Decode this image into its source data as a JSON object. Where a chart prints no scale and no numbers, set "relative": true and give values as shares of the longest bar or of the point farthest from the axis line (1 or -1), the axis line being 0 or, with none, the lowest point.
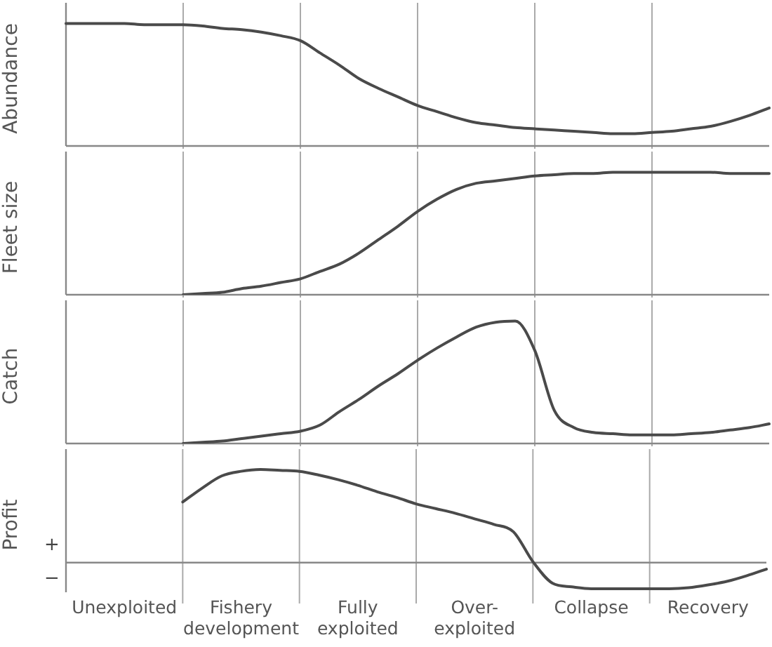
{
  "chart_data": [
    {
      "type": "line",
      "ylabel": "Abundance",
      "relative": true,
      "tick_labels": false,
      "line_style": "solid",
      "marker": "none",
      "legend": false,
      "grid": "x",
      "categories": [
        null,
        null,
        null,
        null,
        null,
        null,
        null,
        null,
        null,
        null,
        null,
        null,
        null,
        null,
        null,
        null,
        null,
        null,
        null,
        null,
        null,
        null,
        null,
        null,
        null,
        null,
        null,
        null,
        null,
        null,
        null,
        null,
        null,
        null,
        null,
        null,
        null
      ],
      "series": [
        {
          "color": "#4a4a4a",
          "values": [
            1.0,
            1.0,
            1.0,
            1.0,
            0.99,
            0.99,
            0.99,
            0.98,
            0.96,
            0.95,
            0.93,
            0.9,
            0.86,
            0.76,
            0.66,
            0.55,
            0.47,
            0.4,
            0.33,
            0.28,
            0.23,
            0.19,
            0.17,
            0.15,
            0.14,
            0.13,
            0.12,
            0.11,
            0.1,
            0.1,
            0.11,
            0.12,
            0.14,
            0.16,
            0.2,
            0.25,
            0.31
          ]
        }
      ]
    },
    {
      "type": "line",
      "ylabel": "Fleet size",
      "relative": true,
      "tick_labels": false,
      "line_style": "solid",
      "marker": "none",
      "legend": false,
      "grid": "x",
      "categories": [
        null,
        null,
        null,
        null,
        null,
        null,
        null,
        null,
        null,
        null,
        null,
        null,
        null,
        null,
        null,
        null,
        null,
        null,
        null,
        null,
        null,
        null,
        null,
        null,
        null,
        null,
        null,
        null,
        null,
        null,
        null,
        null,
        null,
        null,
        null,
        null,
        null
      ],
      "series": [
        {
          "color": "#4a4a4a",
          "values": [
            null,
            null,
            null,
            null,
            null,
            null,
            0,
            0.01,
            0.02,
            0.05,
            0.07,
            0.1,
            0.13,
            0.19,
            0.25,
            0.34,
            0.45,
            0.56,
            0.68,
            0.78,
            0.86,
            0.91,
            0.93,
            0.95,
            0.97,
            0.98,
            0.99,
            0.99,
            1.0,
            1.0,
            1.0,
            1.0,
            1.0,
            1.0,
            0.99,
            0.99,
            0.99
          ]
        }
      ]
    },
    {
      "type": "line",
      "ylabel": "Catch",
      "relative": true,
      "tick_labels": false,
      "line_style": "solid",
      "marker": "none",
      "legend": false,
      "grid": "x",
      "categories": [
        null,
        null,
        null,
        null,
        null,
        null,
        null,
        null,
        null,
        null,
        null,
        null,
        null,
        null,
        null,
        null,
        null,
        null,
        null,
        null,
        null,
        null,
        null,
        null,
        null,
        null,
        null,
        null,
        null,
        null,
        null,
        null,
        null,
        null,
        null,
        null,
        null
      ],
      "series": [
        {
          "color": "#4a4a4a",
          "values": [
            null,
            null,
            null,
            null,
            null,
            null,
            0,
            0.01,
            0.02,
            0.04,
            0.06,
            0.08,
            0.1,
            0.15,
            0.26,
            0.36,
            0.47,
            0.57,
            0.68,
            0.78,
            0.87,
            0.95,
            0.99,
            1.0,
            0.76,
            0.27,
            0.13,
            0.09,
            0.08,
            0.07,
            0.07,
            0.07,
            0.08,
            0.09,
            0.11,
            0.13,
            0.16
          ]
        }
      ]
    },
    {
      "type": "line",
      "ylabel": "Profit",
      "relative": true,
      "line_style": "solid",
      "marker": "none",
      "legend": false,
      "grid": "x",
      "categories": [
        null,
        null,
        null,
        "Unexploited",
        null,
        null,
        null,
        null,
        null,
        "Fishery\ndevelopment",
        null,
        null,
        null,
        null,
        null,
        "Fully\nexploited",
        null,
        null,
        null,
        null,
        null,
        "Over-\nexploited",
        null,
        null,
        null,
        null,
        null,
        "Collapse",
        null,
        null,
        null,
        null,
        null,
        "Recovery",
        null,
        null,
        null
      ],
      "annotations": [
        "+",
        "−"
      ],
      "series": [
        {
          "color": "#4a4a4a",
          "values": [
            null,
            null,
            null,
            null,
            null,
            null,
            0.65,
            0.8,
            0.93,
            0.98,
            1.0,
            0.99,
            0.98,
            0.94,
            0.89,
            0.83,
            0.76,
            0.7,
            0.63,
            0.58,
            0.53,
            0.47,
            0.41,
            0.33,
            0.01,
            -0.22,
            -0.26,
            -0.28,
            -0.28,
            -0.28,
            -0.28,
            -0.28,
            -0.27,
            -0.24,
            -0.2,
            -0.14,
            -0.07
          ]
        }
      ]
    }
  ]
}
